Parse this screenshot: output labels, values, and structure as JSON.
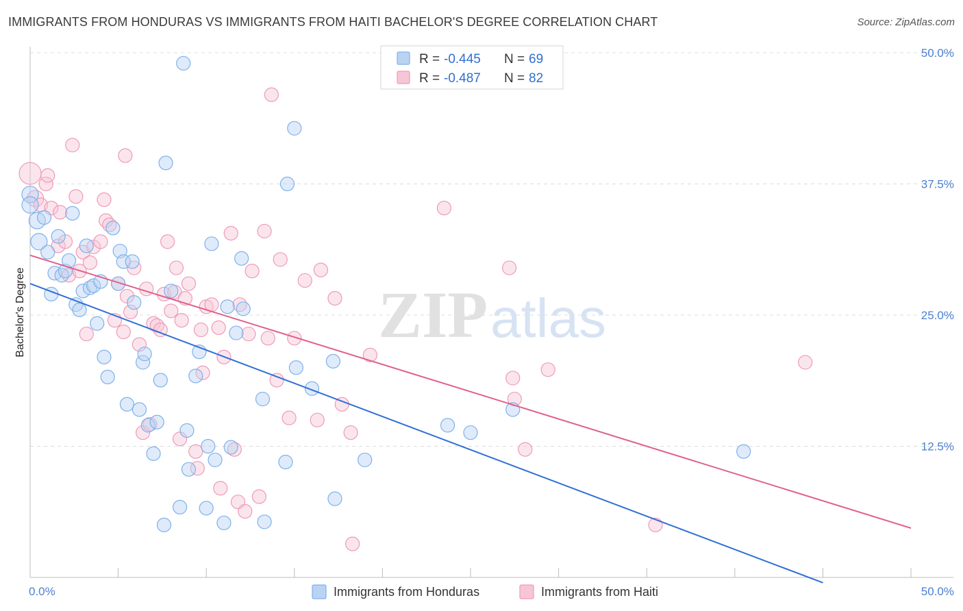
{
  "title": "IMMIGRANTS FROM HONDURAS VS IMMIGRANTS FROM HAITI BACHELOR'S DEGREE CORRELATION CHART",
  "source": "Source: ZipAtlas.com",
  "watermark": {
    "zip": "ZIP",
    "atlas": "atlas"
  },
  "legend": {
    "r_label": "R = ",
    "n_label": "N = ",
    "series": [
      {
        "name": "Immigrants from Honduras",
        "r": "-0.445",
        "n": "69",
        "color": "#7fb0ea",
        "fill": "#b9d3f3",
        "line": "#2e6fd6"
      },
      {
        "name": "Immigrants from Haiti",
        "r": "-0.487",
        "n": "82",
        "color": "#ee9ab6",
        "fill": "#f7c6d6",
        "line": "#e0608a"
      }
    ]
  },
  "chart_data": {
    "type": "scatter",
    "title": "IMMIGRANTS FROM HONDURAS VS IMMIGRANTS FROM HAITI BACHELOR'S DEGREE CORRELATION CHART",
    "xlabel": "",
    "ylabel": "Bachelor's Degree",
    "xlim": [
      0,
      0.5
    ],
    "ylim": [
      0,
      0.5
    ],
    "x_tick_labels": [
      "0.0%",
      "50.0%"
    ],
    "y_ticks": [
      0.125,
      0.25,
      0.375,
      0.5
    ],
    "y_tick_labels": [
      "12.5%",
      "25.0%",
      "37.5%",
      "50.0%"
    ],
    "series": [
      {
        "name": "Immigrants from Honduras",
        "trend": {
          "x0": 0.0,
          "y0": 0.28,
          "x1": 0.45,
          "y1": -0.005
        },
        "points": [
          [
            0.0,
            0.365,
            1
          ],
          [
            0.0,
            0.355,
            1
          ],
          [
            0.004,
            0.34,
            1
          ],
          [
            0.005,
            0.32,
            1
          ],
          [
            0.008,
            0.343,
            0
          ],
          [
            0.01,
            0.31,
            0
          ],
          [
            0.012,
            0.27,
            0
          ],
          [
            0.014,
            0.29,
            0
          ],
          [
            0.016,
            0.325,
            0
          ],
          [
            0.018,
            0.288,
            0
          ],
          [
            0.02,
            0.292,
            0
          ],
          [
            0.022,
            0.302,
            0
          ],
          [
            0.024,
            0.347,
            0
          ],
          [
            0.026,
            0.26,
            0
          ],
          [
            0.028,
            0.255,
            0
          ],
          [
            0.03,
            0.273,
            0
          ],
          [
            0.032,
            0.316,
            0
          ],
          [
            0.034,
            0.276,
            0
          ],
          [
            0.036,
            0.278,
            0
          ],
          [
            0.038,
            0.242,
            0
          ],
          [
            0.04,
            0.282,
            0
          ],
          [
            0.042,
            0.21,
            0
          ],
          [
            0.044,
            0.191,
            0
          ],
          [
            0.047,
            0.333,
            0
          ],
          [
            0.05,
            0.28,
            0
          ],
          [
            0.051,
            0.311,
            0
          ],
          [
            0.053,
            0.301,
            0
          ],
          [
            0.055,
            0.165,
            0
          ],
          [
            0.058,
            0.301,
            0
          ],
          [
            0.059,
            0.262,
            0
          ],
          [
            0.062,
            0.16,
            0
          ],
          [
            0.064,
            0.205,
            0
          ],
          [
            0.065,
            0.213,
            0
          ],
          [
            0.067,
            0.145,
            0
          ],
          [
            0.07,
            0.118,
            0
          ],
          [
            0.072,
            0.148,
            0
          ],
          [
            0.074,
            0.188,
            0
          ],
          [
            0.076,
            0.05,
            0
          ],
          [
            0.077,
            0.395,
            0
          ],
          [
            0.08,
            0.273,
            0
          ],
          [
            0.085,
            0.067,
            0
          ],
          [
            0.087,
            0.49,
            0
          ],
          [
            0.089,
            0.14,
            0
          ],
          [
            0.09,
            0.103,
            0
          ],
          [
            0.094,
            0.192,
            0
          ],
          [
            0.096,
            0.215,
            0
          ],
          [
            0.1,
            0.066,
            0
          ],
          [
            0.101,
            0.125,
            0
          ],
          [
            0.103,
            0.318,
            0
          ],
          [
            0.105,
            0.112,
            0
          ],
          [
            0.11,
            0.052,
            0
          ],
          [
            0.112,
            0.258,
            0
          ],
          [
            0.114,
            0.124,
            0
          ],
          [
            0.117,
            0.233,
            0
          ],
          [
            0.12,
            0.304,
            0
          ],
          [
            0.121,
            0.256,
            0
          ],
          [
            0.132,
            0.17,
            0
          ],
          [
            0.133,
            0.053,
            0
          ],
          [
            0.145,
            0.11,
            0
          ],
          [
            0.146,
            0.375,
            0
          ],
          [
            0.15,
            0.428,
            0
          ],
          [
            0.151,
            0.2,
            0
          ],
          [
            0.16,
            0.18,
            0
          ],
          [
            0.173,
            0.075,
            0
          ],
          [
            0.172,
            0.206,
            0
          ],
          [
            0.19,
            0.112,
            0
          ],
          [
            0.237,
            0.145,
            0
          ],
          [
            0.25,
            0.138,
            0
          ],
          [
            0.274,
            0.16,
            0
          ],
          [
            0.405,
            0.12,
            0
          ]
        ]
      },
      {
        "name": "Immigrants from Haiti",
        "trend": {
          "x0": 0.0,
          "y0": 0.307,
          "x1": 0.5,
          "y1": 0.047
        },
        "points": [
          [
            0.0,
            0.385,
            2
          ],
          [
            0.003,
            0.361,
            1
          ],
          [
            0.006,
            0.355,
            0
          ],
          [
            0.009,
            0.375,
            0
          ],
          [
            0.01,
            0.383,
            0
          ],
          [
            0.012,
            0.352,
            0
          ],
          [
            0.016,
            0.316,
            0
          ],
          [
            0.017,
            0.348,
            0
          ],
          [
            0.02,
            0.32,
            0
          ],
          [
            0.022,
            0.288,
            0
          ],
          [
            0.024,
            0.412,
            0
          ],
          [
            0.026,
            0.363,
            0
          ],
          [
            0.028,
            0.292,
            0
          ],
          [
            0.03,
            0.31,
            0
          ],
          [
            0.032,
            0.232,
            0
          ],
          [
            0.034,
            0.3,
            0
          ],
          [
            0.036,
            0.315,
            0
          ],
          [
            0.04,
            0.32,
            0
          ],
          [
            0.042,
            0.36,
            0
          ],
          [
            0.043,
            0.34,
            0
          ],
          [
            0.045,
            0.336,
            0
          ],
          [
            0.048,
            0.245,
            0
          ],
          [
            0.05,
            0.28,
            0
          ],
          [
            0.053,
            0.234,
            0
          ],
          [
            0.054,
            0.402,
            0
          ],
          [
            0.055,
            0.268,
            0
          ],
          [
            0.057,
            0.253,
            0
          ],
          [
            0.059,
            0.295,
            0
          ],
          [
            0.062,
            0.222,
            0
          ],
          [
            0.064,
            0.138,
            0
          ],
          [
            0.066,
            0.275,
            0
          ],
          [
            0.068,
            0.146,
            0
          ],
          [
            0.07,
            0.242,
            0
          ],
          [
            0.072,
            0.24,
            0
          ],
          [
            0.074,
            0.236,
            0
          ],
          [
            0.076,
            0.27,
            0
          ],
          [
            0.078,
            0.32,
            0
          ],
          [
            0.08,
            0.254,
            0
          ],
          [
            0.082,
            0.272,
            0
          ],
          [
            0.083,
            0.295,
            0
          ],
          [
            0.085,
            0.132,
            0
          ],
          [
            0.086,
            0.245,
            0
          ],
          [
            0.088,
            0.266,
            0
          ],
          [
            0.09,
            0.28,
            0
          ],
          [
            0.094,
            0.12,
            0
          ],
          [
            0.095,
            0.104,
            0
          ],
          [
            0.097,
            0.236,
            0
          ],
          [
            0.098,
            0.195,
            0
          ],
          [
            0.1,
            0.258,
            0
          ],
          [
            0.103,
            0.26,
            0
          ],
          [
            0.107,
            0.238,
            0
          ],
          [
            0.108,
            0.085,
            0
          ],
          [
            0.11,
            0.21,
            0
          ],
          [
            0.114,
            0.328,
            0
          ],
          [
            0.116,
            0.122,
            0
          ],
          [
            0.118,
            0.072,
            0
          ],
          [
            0.119,
            0.26,
            0
          ],
          [
            0.122,
            0.063,
            0
          ],
          [
            0.124,
            0.232,
            0
          ],
          [
            0.126,
            0.292,
            0
          ],
          [
            0.13,
            0.077,
            0
          ],
          [
            0.133,
            0.33,
            0
          ],
          [
            0.135,
            0.228,
            0
          ],
          [
            0.137,
            0.46,
            0
          ],
          [
            0.14,
            0.188,
            0
          ],
          [
            0.142,
            0.303,
            0
          ],
          [
            0.147,
            0.152,
            0
          ],
          [
            0.15,
            0.228,
            0
          ],
          [
            0.156,
            0.283,
            0
          ],
          [
            0.163,
            0.15,
            0
          ],
          [
            0.165,
            0.293,
            0
          ],
          [
            0.173,
            0.266,
            0
          ],
          [
            0.177,
            0.165,
            0
          ],
          [
            0.183,
            0.032,
            0
          ],
          [
            0.182,
            0.138,
            0
          ],
          [
            0.193,
            0.212,
            0
          ],
          [
            0.235,
            0.352,
            0
          ],
          [
            0.272,
            0.295,
            0
          ],
          [
            0.274,
            0.19,
            0
          ],
          [
            0.275,
            0.17,
            0
          ],
          [
            0.281,
            0.122,
            0
          ],
          [
            0.294,
            0.198,
            0
          ],
          [
            0.355,
            0.05,
            0
          ],
          [
            0.44,
            0.205,
            0
          ]
        ]
      }
    ]
  }
}
